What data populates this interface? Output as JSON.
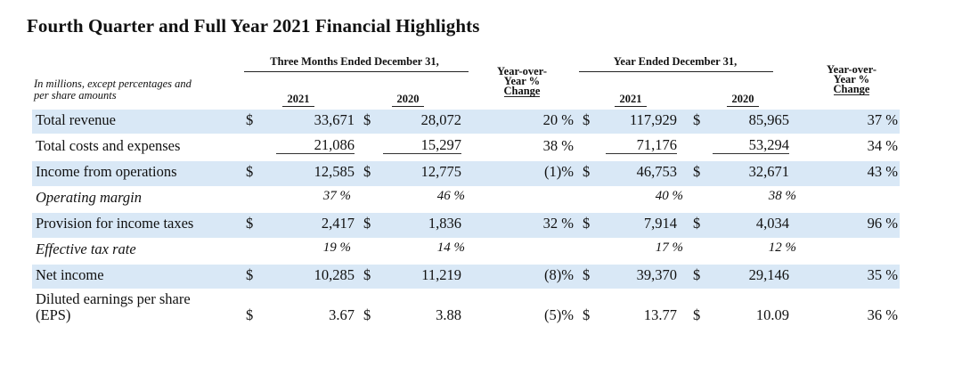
{
  "title": "Fourth Quarter and Full Year 2021 Financial Highlights",
  "header": {
    "note_line1": "In millions, except percentages and",
    "note_line2": "per share amounts",
    "group_quarter": "Three Months Ended December 31,",
    "group_year": "Year Ended December 31,",
    "yoy_q": [
      "Year-over-",
      "Year %",
      "Change"
    ],
    "yoy_y": [
      "Year-over-",
      "Year %",
      "Change"
    ],
    "q_2021": "2021",
    "q_2020": "2020",
    "y_2021": "2021",
    "y_2020": "2020"
  },
  "rows": [
    {
      "label": "Total revenue",
      "italic": false,
      "d1": "$",
      "q21": "33,671",
      "d2": "$",
      "q20": "28,072",
      "chq": "20 %",
      "d3": "$",
      "y21": "117,929",
      "d4": "$",
      "y20": "85,965",
      "chy": "37 %"
    },
    {
      "label": "Total costs and expenses",
      "italic": false,
      "d1": "",
      "q21": "21,086",
      "d2": "",
      "q20": "15,297",
      "chq": "38 %",
      "d3": "",
      "y21": "71,176",
      "d4": "",
      "y20": "53,294",
      "chy": "34 %"
    },
    {
      "label": "Income from operations",
      "italic": false,
      "d1": "$",
      "q21": "12,585",
      "d2": "$",
      "q20": "12,775",
      "chq": "(1)%",
      "d3": "$",
      "y21": "46,753",
      "d4": "$",
      "y20": "32,671",
      "chy": "43 %"
    },
    {
      "label": "Operating margin",
      "italic": true,
      "d1": "",
      "q21": "37 %",
      "d2": "",
      "q20": "46 %",
      "chq": "",
      "d3": "",
      "y21": "40 %",
      "d4": "",
      "y20": "38 %",
      "chy": ""
    },
    {
      "label": "Provision for income taxes",
      "italic": false,
      "d1": "$",
      "q21": "2,417",
      "d2": "$",
      "q20": "1,836",
      "chq": "32 %",
      "d3": "$",
      "y21": "7,914",
      "d4": "$",
      "y20": "4,034",
      "chy": "96 %"
    },
    {
      "label": "Effective tax rate",
      "italic": true,
      "d1": "",
      "q21": "19 %",
      "d2": "",
      "q20": "14 %",
      "chq": "",
      "d3": "",
      "y21": "17 %",
      "d4": "",
      "y20": "12 %",
      "chy": ""
    },
    {
      "label": "Net income",
      "italic": false,
      "d1": "$",
      "q21": "10,285",
      "d2": "$",
      "q20": "11,219",
      "chq": "(8)%",
      "d3": "$",
      "y21": "39,370",
      "d4": "$",
      "y20": "29,146",
      "chy": "35 %"
    },
    {
      "label": "Diluted earnings per share",
      "label2": "(EPS)",
      "italic": false,
      "d1": "$",
      "q21": "3.67",
      "d2": "$",
      "q20": "3.88",
      "chq": "(5)%",
      "d3": "$",
      "y21": "13.77",
      "d4": "$",
      "y20": "10.09",
      "chy": "36 %"
    }
  ]
}
